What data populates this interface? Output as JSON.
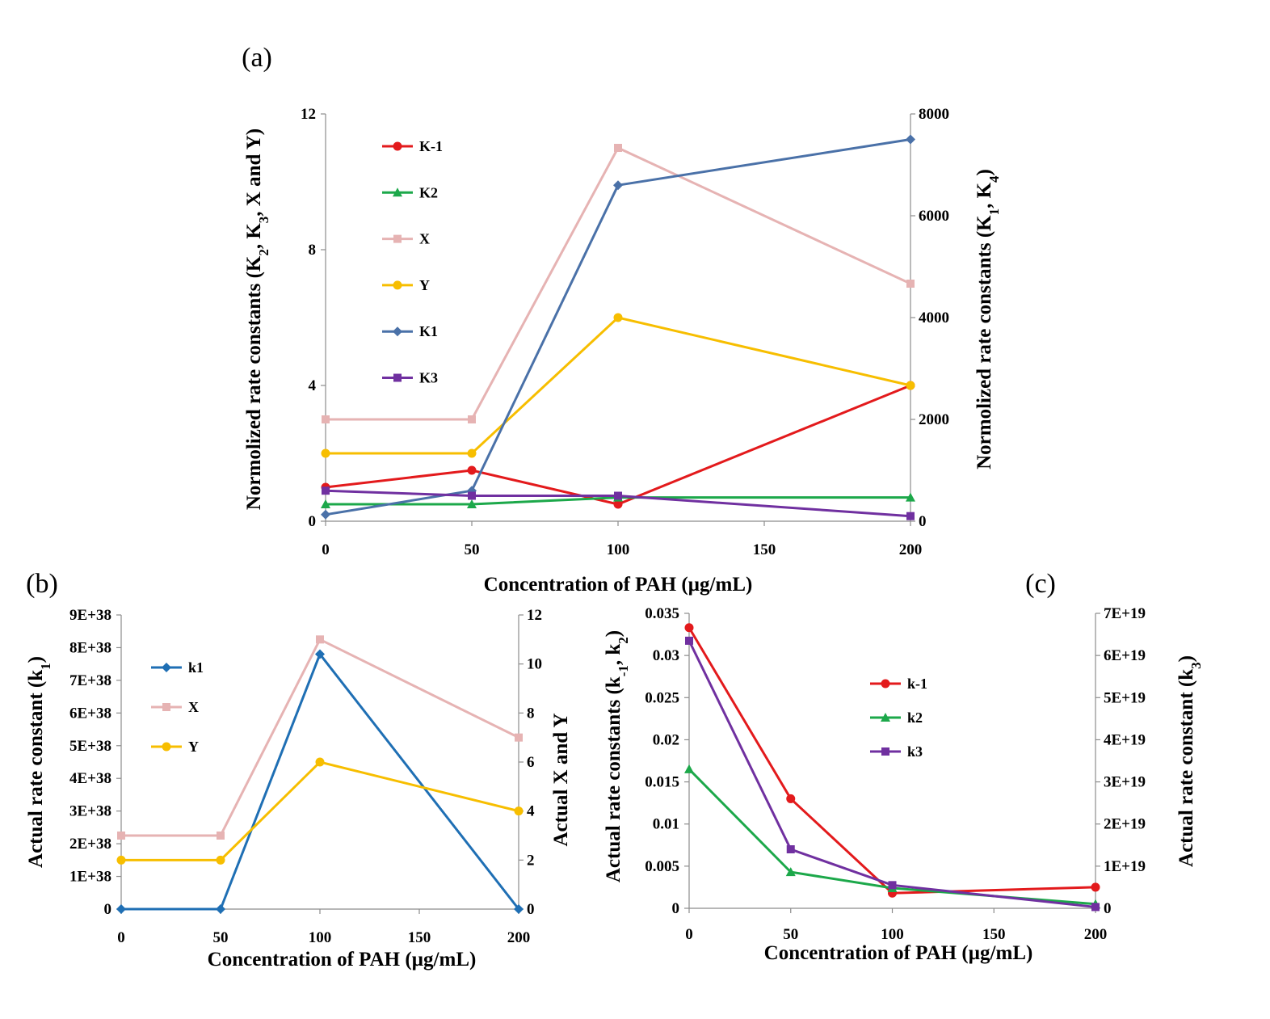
{
  "chart_data": [
    {
      "panel": "(a)",
      "type": "line",
      "x": [
        0,
        50,
        100,
        200
      ],
      "xticks": [
        "0",
        "50",
        "100",
        "150",
        "200"
      ],
      "xlabel": "Concentration of PAH (µg/mL)",
      "ylabel_left_parts": [
        "Normolized rate constants (K",
        "2",
        ", K",
        "3",
        ", X and Y)"
      ],
      "ylabel_right_parts": [
        "Normolized rate constants (K",
        "1",
        ", K",
        "4",
        ")"
      ],
      "ylim_left": [
        0,
        12
      ],
      "yticks_left": [
        "0",
        "4",
        "8",
        "12"
      ],
      "ylim_right": [
        0,
        8000
      ],
      "yticks_right": [
        "0",
        "2000",
        "4000",
        "6000",
        "8000"
      ],
      "series": [
        {
          "name": "K-1",
          "axis": "left",
          "color": "#e31a1c",
          "marker": "circle",
          "values": [
            1.0,
            1.5,
            0.5,
            4.0
          ]
        },
        {
          "name": "K2",
          "axis": "left",
          "color": "#1ca84a",
          "marker": "triangle",
          "values": [
            0.5,
            0.5,
            0.7,
            0.7
          ]
        },
        {
          "name": "X",
          "axis": "left",
          "color": "#e6b3b3",
          "marker": "square",
          "values": [
            3,
            3,
            11,
            7
          ]
        },
        {
          "name": "Y",
          "axis": "left",
          "color": "#f7be00",
          "marker": "circle",
          "values": [
            2,
            2,
            6,
            4
          ]
        },
        {
          "name": "K1",
          "axis": "right",
          "color": "#4a71a8",
          "marker": "diamond",
          "values": [
            130,
            600,
            6600,
            7500
          ]
        },
        {
          "name": "K3",
          "axis": "left",
          "color": "#7030a0",
          "marker": "square",
          "values": [
            0.9,
            0.75,
            0.75,
            0.15
          ]
        }
      ]
    },
    {
      "panel": "(b)",
      "type": "line",
      "x": [
        0,
        50,
        100,
        200
      ],
      "xticks": [
        "0",
        "50",
        "100",
        "150",
        "200"
      ],
      "xlabel": "Concentration of PAH (µg/mL)",
      "ylabel_left_parts": [
        "Actual rate constant (k",
        "1",
        ")"
      ],
      "ylabel_right_parts": [
        "Actual X and Y"
      ],
      "ylim_left": [
        0,
        9e+38
      ],
      "yticks_left": [
        "0",
        "1E+38",
        "2E+38",
        "3E+38",
        "4E+38",
        "5E+38",
        "6E+38",
        "7E+38",
        "8E+38",
        "9E+38"
      ],
      "ylim_right": [
        0,
        12
      ],
      "yticks_right": [
        "0",
        "2",
        "4",
        "6",
        "8",
        "10",
        "12"
      ],
      "series": [
        {
          "name": "k1",
          "axis": "left",
          "color": "#1f6fb4",
          "marker": "diamond",
          "values": [
            0,
            0,
            7.8e+38,
            0
          ]
        },
        {
          "name": "X",
          "axis": "right",
          "color": "#e6b3b3",
          "marker": "square",
          "values": [
            3,
            3,
            11,
            7
          ]
        },
        {
          "name": "Y",
          "axis": "right",
          "color": "#f7be00",
          "marker": "circle",
          "values": [
            2,
            2,
            6,
            4
          ]
        }
      ]
    },
    {
      "panel": "(c)",
      "type": "line",
      "x": [
        0,
        50,
        100,
        200
      ],
      "xticks": [
        "0",
        "50",
        "100",
        "150",
        "200"
      ],
      "xlabel": "Concentration of PAH (µg/mL)",
      "ylabel_left_parts": [
        "Actual rate constants (k",
        "-1",
        ", k",
        "2",
        ")"
      ],
      "ylabel_right_parts": [
        "Actual rate constant (k",
        "3",
        ")"
      ],
      "ylim_left": [
        0,
        0.035
      ],
      "yticks_left": [
        "0",
        "0.005",
        "0.01",
        "0.015",
        "0.02",
        "0.025",
        "0.03",
        "0.035"
      ],
      "ylim_right": [
        0,
        7e+19
      ],
      "yticks_right": [
        "0",
        "1E+19",
        "2E+19",
        "3E+19",
        "4E+19",
        "5E+19",
        "6E+19",
        "7E+19"
      ],
      "series": [
        {
          "name": "k-1",
          "axis": "left",
          "color": "#e31a1c",
          "marker": "circle",
          "values": [
            0.0333,
            0.013,
            0.0018,
            0.0025
          ]
        },
        {
          "name": "k2",
          "axis": "left",
          "color": "#1ca84a",
          "marker": "triangle",
          "values": [
            0.0165,
            0.0043,
            0.0024,
            0.0005
          ]
        },
        {
          "name": "k3",
          "axis": "right",
          "color": "#7030a0",
          "marker": "square",
          "values": [
            6.35e+19,
            1.4e+19,
            5.5e+18,
            3e+17
          ]
        }
      ]
    }
  ]
}
